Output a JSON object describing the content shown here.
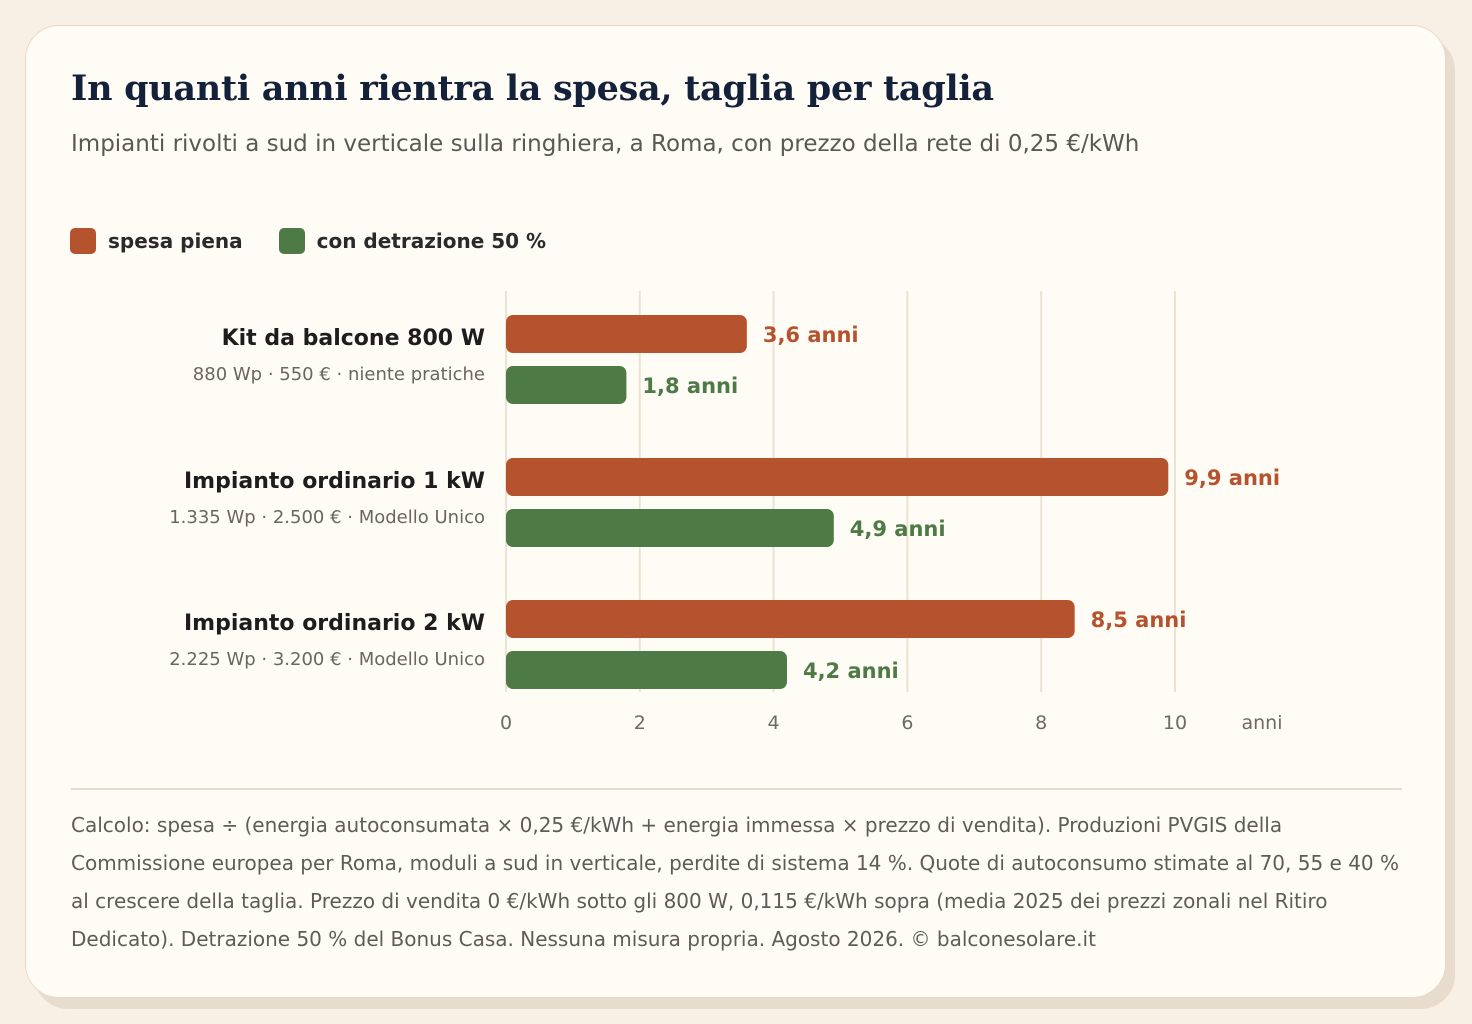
{
  "title": "In quanti anni rientra la spesa, taglia per taglia",
  "subtitle": "Impianti rivolti a sud in verticale sulla ringhiera, a Roma, con prezzo della rete di 0,25 €/kWh",
  "legend": [
    {
      "label": "spesa piena",
      "color": "#b5532e"
    },
    {
      "label": "con detrazione 50 %",
      "color": "#4e7a46"
    }
  ],
  "note": "Calcolo: spesa ÷ (energia autoconsumata × 0,25 €/kWh + energia immessa × prezzo di vendita). Produzioni PVGIS della Commissione europea per Roma, moduli a sud in verticale, perdite di sistema 14 %. Quote di autoconsumo stimate al 70, 55 e 40 % al crescere della taglia. Prezzo di vendita 0 €/kWh sotto gli 800 W, 0,115 €/kWh sopra (media 2025 dei prezzi zonali nel Ritiro Dedicato). Detrazione 50 % del Bonus Casa. Nessuna misura propria. Agosto 2026. © balconesolare.it",
  "chart_data": {
    "type": "bar",
    "orientation": "horizontal",
    "categories": [
      {
        "label": "Kit da balcone 800 W",
        "sublabel": "880 Wp · 550 € · niente pratiche"
      },
      {
        "label": "Impianto ordinario 1 kW",
        "sublabel": "1.335 Wp · 2.500 € · Modello Unico"
      },
      {
        "label": "Impianto ordinario 2 kW",
        "sublabel": "2.225 Wp · 3.200 € · Modello Unico"
      }
    ],
    "series": [
      {
        "name": "spesa piena",
        "color": "#b5532e",
        "values": [
          3.6,
          9.9,
          8.5
        ],
        "labels": [
          "3,6 anni",
          "9,9 anni",
          "8,5 anni"
        ]
      },
      {
        "name": "con detrazione 50 %",
        "color": "#4e7a46",
        "values": [
          1.8,
          4.9,
          4.2
        ],
        "labels": [
          "1,8 anni",
          "4,9 anni",
          "4,2 anni"
        ]
      }
    ],
    "xlim": [
      0,
      10
    ],
    "xticks": [
      0,
      2,
      4,
      6,
      8,
      10
    ],
    "xlabel": "anni",
    "grid": true
  }
}
